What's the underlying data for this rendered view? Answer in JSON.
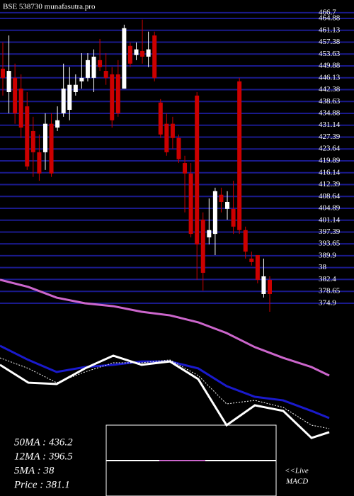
{
  "chart_data": [
    {
      "type": "candlestick",
      "title": "BSE 538730 munafasutra.pro",
      "ylim": [
        372.2,
        470.7
      ],
      "yticks": [
        466.7,
        464.88,
        461.13,
        457.38,
        453.63,
        449.88,
        446.13,
        442.38,
        438.63,
        434.88,
        431.14,
        427.39,
        423.64,
        419.89,
        416.14,
        412.39,
        408.64,
        404.89,
        401.14,
        397.39,
        393.65,
        389.9,
        {
          "value": 386.15,
          "label": "38"
        },
        382.4,
        378.65,
        374.9
      ],
      "grid": true,
      "up_color": "#ffffff",
      "down_color": "#cc0000",
      "grid_color": "#1a1a8c",
      "open": [
        449.0,
        441.6,
        446.1,
        442.7,
        437.1,
        429.3,
        422.6,
        422.6,
        431.6,
        430.4,
        434.9,
        436.0,
        441.6,
        445.0,
        446.1,
        446.1,
        451.7,
        448.3,
        447.2,
        447.2,
        442.7,
        456.2,
        453.3,
        454.6,
        452.8,
        459.5,
        438.3,
        431.6,
        431.6,
        427.1,
        419.2,
        415.9,
        440.5,
        401.3,
        395.7,
        396.8,
        409.2,
        404.7,
        404.7,
        445.0,
        398.0,
        389.0,
        390.1,
        377.8,
        382.3
      ],
      "high": [
        457.3,
        459.5,
        450.6,
        447.2,
        441.6,
        433.8,
        428.2,
        434.9,
        434.9,
        437.1,
        450.6,
        449.5,
        447.2,
        453.9,
        453.9,
        455.1,
        458.4,
        453.9,
        449.5,
        451.7,
        462.9,
        457.3,
        457.3,
        464.5,
        460.7,
        460.7,
        439.4,
        434.9,
        433.8,
        428.2,
        421.5,
        419.2,
        441.6,
        403.6,
        408.0,
        411.4,
        411.4,
        410.3,
        413.6,
        446.1,
        399.1,
        391.2,
        390.1,
        389.0,
        383.4
      ],
      "low": [
        440.5,
        434.9,
        431.6,
        427.1,
        417.0,
        414.8,
        413.6,
        417.0,
        414.8,
        429.3,
        433.8,
        432.7,
        440.5,
        442.7,
        445.0,
        441.6,
        448.3,
        443.9,
        430.4,
        433.8,
        442.7,
        449.5,
        451.7,
        450.6,
        449.5,
        445.0,
        427.1,
        421.5,
        423.7,
        419.2,
        403.6,
        395.7,
        382.3,
        378.9,
        393.5,
        390.1,
        403.6,
        401.3,
        396.8,
        396.8,
        389.0,
        386.8,
        381.2,
        376.7,
        372.2
      ],
      "close": [
        446.1,
        448.3,
        434.9,
        430.4,
        418.1,
        422.6,
        415.9,
        431.6,
        415.9,
        432.7,
        442.7,
        443.9,
        443.9,
        446.1,
        451.7,
        452.8,
        449.5,
        446.1,
        432.7,
        434.9,
        461.8,
        450.6,
        455.1,
        452.8,
        455.1,
        446.1,
        428.2,
        422.6,
        427.1,
        420.4,
        415.9,
        396.8,
        393.5,
        384.5,
        398.0,
        410.3,
        406.9,
        406.9,
        399.1,
        398.0,
        391.2,
        387.9,
        382.3,
        383.4,
        377.8
      ]
    },
    {
      "type": "line",
      "ylim": [
        0,
        100
      ],
      "x": [
        0,
        40,
        80,
        120,
        160,
        200,
        240,
        280,
        320,
        360,
        400,
        440,
        465
      ],
      "series": [
        {
          "color": "#cc66cc",
          "values": [
            93.8,
            89.6,
            83.3,
            80.0,
            78.3,
            75.0,
            72.9,
            68.8,
            62.5,
            54.2,
            47.9,
            42.5,
            37.5
          ]
        },
        {
          "color": "#1a1acc",
          "values": [
            55.0,
            46.7,
            39.6,
            42.5,
            43.8,
            45.8,
            45.8,
            41.7,
            31.3,
            25.0,
            22.9,
            16.7,
            12.5
          ]
        },
        {
          "color": "#ffffff",
          "dashed": true,
          "values": [
            47.9,
            41.7,
            33.3,
            39.6,
            45.0,
            45.0,
            46.7,
            37.5,
            20.8,
            22.9,
            18.8,
            8.3,
            6.3
          ]
        },
        {
          "color": "#ffffff",
          "values": [
            43.8,
            33.3,
            32.5,
            41.7,
            49.2,
            43.8,
            45.8,
            35.4,
            8.3,
            20.0,
            16.7,
            0.8,
            4.2
          ]
        }
      ],
      "legend_lines": [
        "50MA : 436.2",
        "12MA : 396.5",
        "5MA : 38",
        "Price : 381.1"
      ],
      "macd_label": "<<Live",
      "macd_title": "MACD"
    }
  ]
}
